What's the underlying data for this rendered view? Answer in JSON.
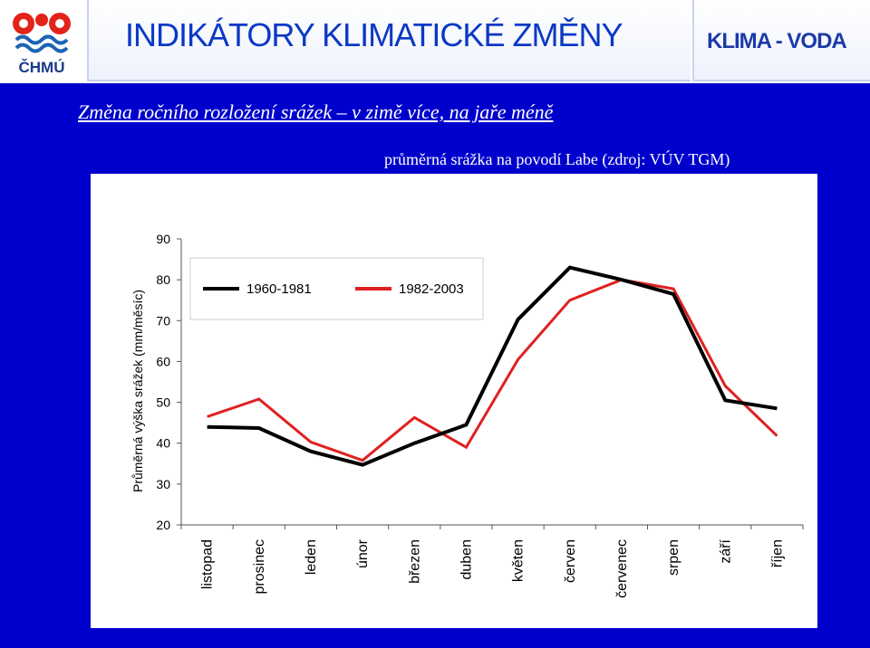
{
  "header": {
    "logo_text": "ČHMÚ",
    "title": "INDIKÁTORY KLIMATICKÉ ZMĚNY",
    "section": "KLIMA - VODA"
  },
  "slide": {
    "subtitle": "Změna ročního rozložení srážek – v zimě více, na jaře méně",
    "source": "průměrná srážka na povodí Labe (zdroj: VÚV TGM)"
  },
  "colors": {
    "band": "#0000cc",
    "series1": "#000000",
    "series2": "#e02020",
    "title": "#0b39c6"
  },
  "chart_data": {
    "type": "line",
    "title": "",
    "xlabel": "",
    "ylabel": "Průměrná výška srážek (mm/měsíc)",
    "ylim": [
      20,
      90
    ],
    "yticks": [
      20,
      30,
      40,
      50,
      60,
      70,
      80,
      90
    ],
    "categories": [
      "listopad",
      "prosinec",
      "leden",
      "únor",
      "březen",
      "duben",
      "květen",
      "červen",
      "červenec",
      "srpen",
      "září",
      "říjen"
    ],
    "series": [
      {
        "name": "1960-1981",
        "color": "#000000",
        "values": [
          44,
          43.7,
          38,
          34.7,
          40,
          44.5,
          70.3,
          83,
          80,
          76.5,
          50.5,
          48.5
        ]
      },
      {
        "name": "1982-2003",
        "color": "#e02020",
        "values": [
          46.5,
          50.8,
          40.3,
          35.8,
          46.3,
          39,
          60.5,
          75,
          80,
          77.8,
          54,
          41.8
        ]
      }
    ],
    "grid": false,
    "legend_position": "top-left"
  }
}
